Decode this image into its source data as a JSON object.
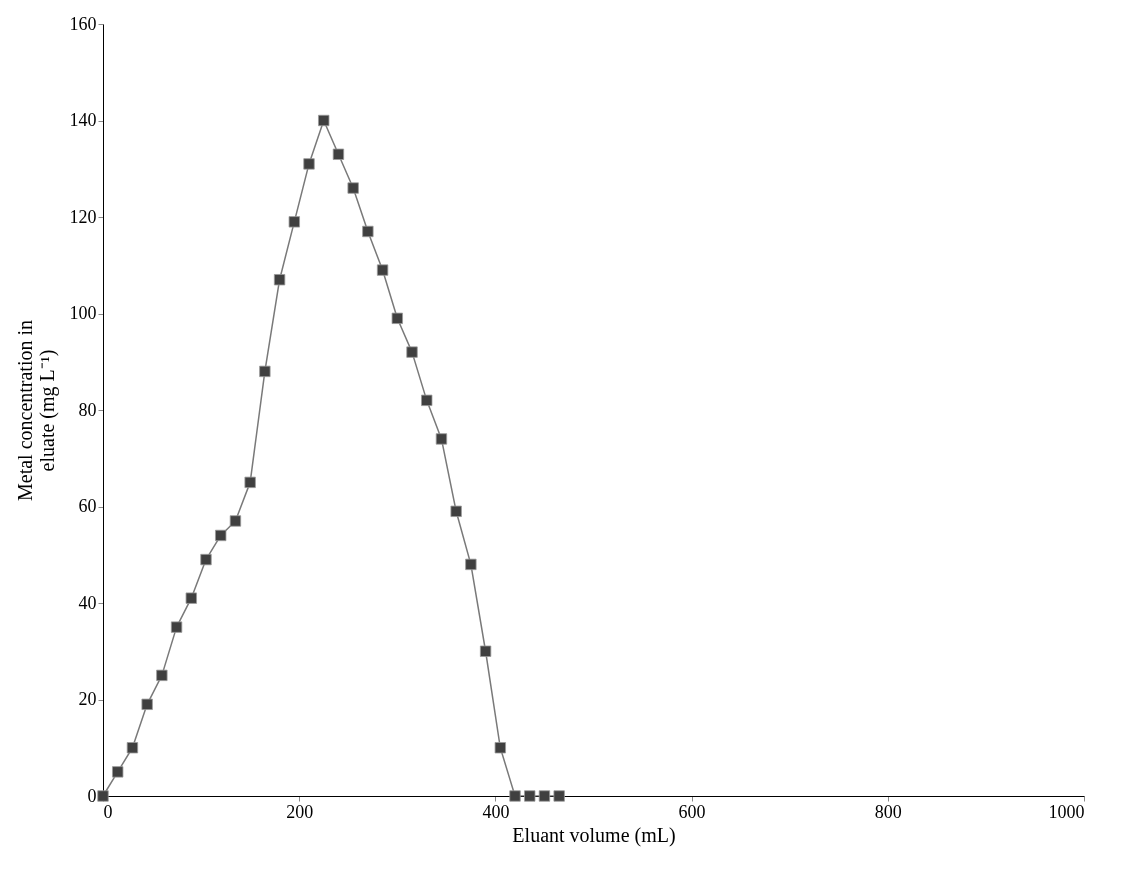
{
  "chart_data": {
    "type": "line",
    "xlabel": "Eluant volume (mL)",
    "ylabel": "Metal concentration in\neluate (mg L⁻¹)",
    "x": [
      0,
      15,
      30,
      45,
      60,
      75,
      90,
      105,
      120,
      135,
      150,
      165,
      180,
      195,
      210,
      225,
      240,
      255,
      270,
      285,
      300,
      315,
      330,
      345,
      360,
      375,
      390,
      405,
      420,
      435,
      450,
      465
    ],
    "series": [
      {
        "color": "#404040",
        "values": [
          0,
          5,
          10,
          19,
          25,
          35,
          41,
          49,
          54,
          57,
          65,
          88,
          107,
          119,
          131,
          140,
          133,
          126,
          117,
          109,
          99,
          92,
          82,
          74,
          59,
          48,
          30,
          10,
          0,
          0,
          0,
          0
        ]
      }
    ],
    "xlim": [
      0,
      1000
    ],
    "xticks": [
      0,
      200,
      400,
      600,
      800,
      1000
    ],
    "ylim": [
      0,
      160
    ],
    "yticks": [
      0,
      20,
      40,
      60,
      80,
      100,
      120,
      140,
      160
    ],
    "grid": false,
    "legend": false,
    "marker": "square",
    "line_style": "solid"
  }
}
